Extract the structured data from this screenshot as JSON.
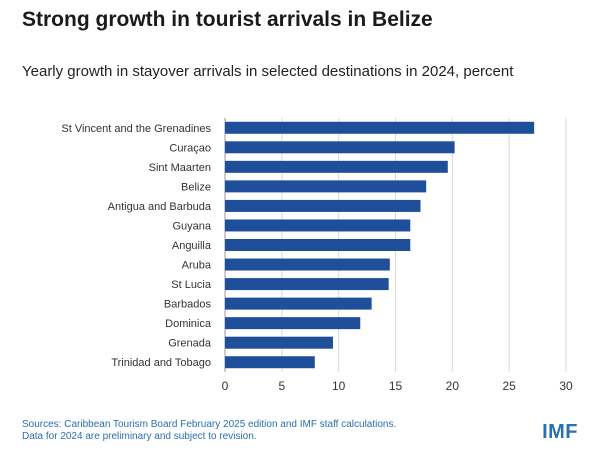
{
  "header": {
    "title": "Strong growth in tourist arrivals in Belize",
    "subtitle": "Yearly growth in stayover arrivals in selected destinations in 2024, percent"
  },
  "footer": {
    "source_line1": "Sources: Caribbean Tourism Board February 2025 edition and IMF staff calculations.",
    "source_line2": "Data for 2024 are preliminary and subject to revision.",
    "logo": "IMF"
  },
  "colors": {
    "bar": "#1f4e9b",
    "grid": "#d9d9d9",
    "axis": "#999999",
    "accent": "#2a6fb0"
  },
  "chart_data": {
    "type": "bar",
    "orientation": "horizontal",
    "title": "Strong growth in tourist arrivals in Belize",
    "subtitle": "Yearly growth in stayover arrivals in selected destinations in 2024, percent",
    "xlabel": "",
    "ylabel": "",
    "xlim": [
      0,
      30
    ],
    "xticks": [
      0,
      5,
      10,
      15,
      20,
      25,
      30
    ],
    "grid": true,
    "categories": [
      "St Vincent and the Grenadines",
      "Curaçao",
      "Sint Maarten",
      "Belize",
      "Antigua and Barbuda",
      "Guyana",
      "Anguilla",
      "Aruba",
      "St Lucia",
      "Barbados",
      "Dominica",
      "Grenada",
      "Trinidad and Tobago"
    ],
    "values": [
      27.2,
      20.2,
      19.6,
      17.7,
      17.2,
      16.3,
      16.3,
      14.5,
      14.4,
      12.9,
      11.9,
      9.5,
      7.9
    ]
  }
}
